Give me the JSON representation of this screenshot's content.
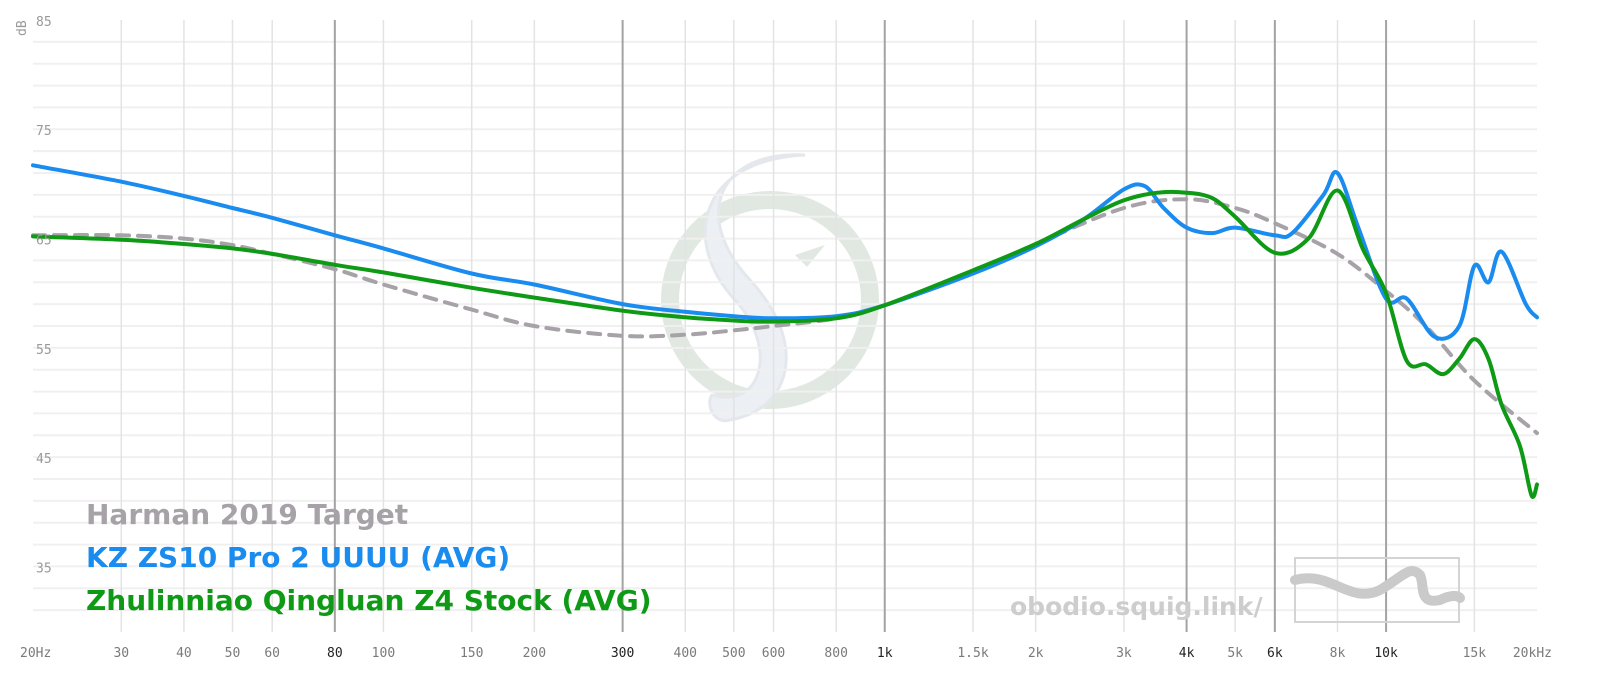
{
  "chart_data": {
    "type": "line",
    "ylabel": "dB",
    "xscale": "log",
    "xlim": [
      20,
      20000
    ],
    "ylim": [
      30,
      86
    ],
    "x_ticks": [
      {
        "value": 20,
        "label": "20Hz"
      },
      {
        "value": 30,
        "label": "30"
      },
      {
        "value": 40,
        "label": "40"
      },
      {
        "value": 50,
        "label": "50"
      },
      {
        "value": 60,
        "label": "60"
      },
      {
        "value": 80,
        "label": "80"
      },
      {
        "value": 100,
        "label": "100"
      },
      {
        "value": 150,
        "label": "150"
      },
      {
        "value": 200,
        "label": "200"
      },
      {
        "value": 300,
        "label": "300"
      },
      {
        "value": 400,
        "label": "400"
      },
      {
        "value": 500,
        "label": "500"
      },
      {
        "value": 600,
        "label": "600"
      },
      {
        "value": 800,
        "label": "800"
      },
      {
        "value": 1000,
        "label": "1k"
      },
      {
        "value": 1500,
        "label": "1.5k"
      },
      {
        "value": 2000,
        "label": "2k"
      },
      {
        "value": 3000,
        "label": "3k"
      },
      {
        "value": 4000,
        "label": "4k"
      },
      {
        "value": 5000,
        "label": "5k"
      },
      {
        "value": 6000,
        "label": "6k"
      },
      {
        "value": 8000,
        "label": "8k"
      },
      {
        "value": 10000,
        "label": "10k"
      },
      {
        "value": 15000,
        "label": "15k"
      },
      {
        "value": 20000,
        "label": "20kHz"
      }
    ],
    "x_major": [
      80,
      300,
      1000,
      4000,
      6000,
      10000
    ],
    "y_labels": [
      {
        "value": 85,
        "label": "85"
      },
      {
        "value": 75,
        "label": "75"
      },
      {
        "value": 65,
        "label": "65"
      },
      {
        "value": 55,
        "label": "55"
      },
      {
        "value": 45,
        "label": "45"
      },
      {
        "value": 35,
        "label": "35"
      }
    ],
    "grid": true,
    "legend_position": "bottom-left",
    "series": [
      {
        "name": "Harman 2019 Target",
        "color": "#a6a2a8",
        "dashed": true,
        "points": [
          [
            20,
            66.3
          ],
          [
            30,
            66.3
          ],
          [
            40,
            66.0
          ],
          [
            50,
            65.4
          ],
          [
            60,
            64.6
          ],
          [
            80,
            63.2
          ],
          [
            100,
            61.8
          ],
          [
            150,
            59.5
          ],
          [
            200,
            58.0
          ],
          [
            300,
            57.1
          ],
          [
            400,
            57.2
          ],
          [
            500,
            57.6
          ],
          [
            600,
            58.0
          ],
          [
            800,
            58.7
          ],
          [
            1000,
            59.9
          ],
          [
            1500,
            62.9
          ],
          [
            2000,
            65.5
          ],
          [
            3000,
            68.8
          ],
          [
            4000,
            69.6
          ],
          [
            5000,
            68.8
          ],
          [
            6000,
            67.4
          ],
          [
            8000,
            64.6
          ],
          [
            10000,
            61.2
          ],
          [
            12000,
            58.0
          ],
          [
            15000,
            53.0
          ],
          [
            20000,
            48.2
          ]
        ]
      },
      {
        "name": "KZ ZS10 Pro 2 UUUU (AVG)",
        "color": "#1a8bef",
        "points": [
          [
            20,
            72.7
          ],
          [
            30,
            71.2
          ],
          [
            40,
            69.9
          ],
          [
            50,
            68.8
          ],
          [
            60,
            67.9
          ],
          [
            80,
            66.3
          ],
          [
            100,
            65.1
          ],
          [
            150,
            62.8
          ],
          [
            200,
            61.8
          ],
          [
            300,
            60.0
          ],
          [
            400,
            59.3
          ],
          [
            500,
            58.9
          ],
          [
            600,
            58.7
          ],
          [
            800,
            58.9
          ],
          [
            1000,
            59.9
          ],
          [
            1500,
            62.8
          ],
          [
            2000,
            65.3
          ],
          [
            2500,
            67.8
          ],
          [
            3000,
            70.5
          ],
          [
            3300,
            70.8
          ],
          [
            3600,
            68.8
          ],
          [
            4000,
            67.0
          ],
          [
            4500,
            66.5
          ],
          [
            5000,
            67.0
          ],
          [
            6000,
            66.3
          ],
          [
            6500,
            66.5
          ],
          [
            7500,
            70.0
          ],
          [
            8000,
            72.0
          ],
          [
            8800,
            67.0
          ],
          [
            10000,
            60.5
          ],
          [
            11000,
            60.5
          ],
          [
            12500,
            57.0
          ],
          [
            14000,
            58.0
          ],
          [
            15000,
            63.5
          ],
          [
            16000,
            62.0
          ],
          [
            17000,
            64.8
          ],
          [
            19000,
            60.0
          ],
          [
            20000,
            58.8
          ]
        ]
      },
      {
        "name": "Zhulinniao Qingluan Z4 Stock (AVG)",
        "color": "#0e9a15",
        "points": [
          [
            20,
            66.2
          ],
          [
            30,
            65.9
          ],
          [
            40,
            65.5
          ],
          [
            50,
            65.1
          ],
          [
            60,
            64.6
          ],
          [
            80,
            63.6
          ],
          [
            100,
            62.9
          ],
          [
            150,
            61.5
          ],
          [
            200,
            60.6
          ],
          [
            300,
            59.4
          ],
          [
            400,
            58.8
          ],
          [
            500,
            58.5
          ],
          [
            600,
            58.4
          ],
          [
            800,
            58.7
          ],
          [
            1000,
            59.9
          ],
          [
            1500,
            63.1
          ],
          [
            2000,
            65.5
          ],
          [
            2500,
            67.8
          ],
          [
            3000,
            69.5
          ],
          [
            3500,
            70.2
          ],
          [
            4000,
            70.2
          ],
          [
            4500,
            69.7
          ],
          [
            5000,
            68.0
          ],
          [
            6000,
            64.7
          ],
          [
            7000,
            66.0
          ],
          [
            8000,
            70.4
          ],
          [
            9000,
            65.0
          ],
          [
            10000,
            61.0
          ],
          [
            11000,
            54.8
          ],
          [
            12000,
            54.5
          ],
          [
            13000,
            53.6
          ],
          [
            14000,
            55.0
          ],
          [
            15000,
            56.8
          ],
          [
            16000,
            55.0
          ],
          [
            17000,
            50.8
          ],
          [
            18500,
            47.0
          ],
          [
            19500,
            42.5
          ],
          [
            20000,
            43.5
          ]
        ]
      }
    ],
    "watermark": "obodio.squig.link/"
  }
}
